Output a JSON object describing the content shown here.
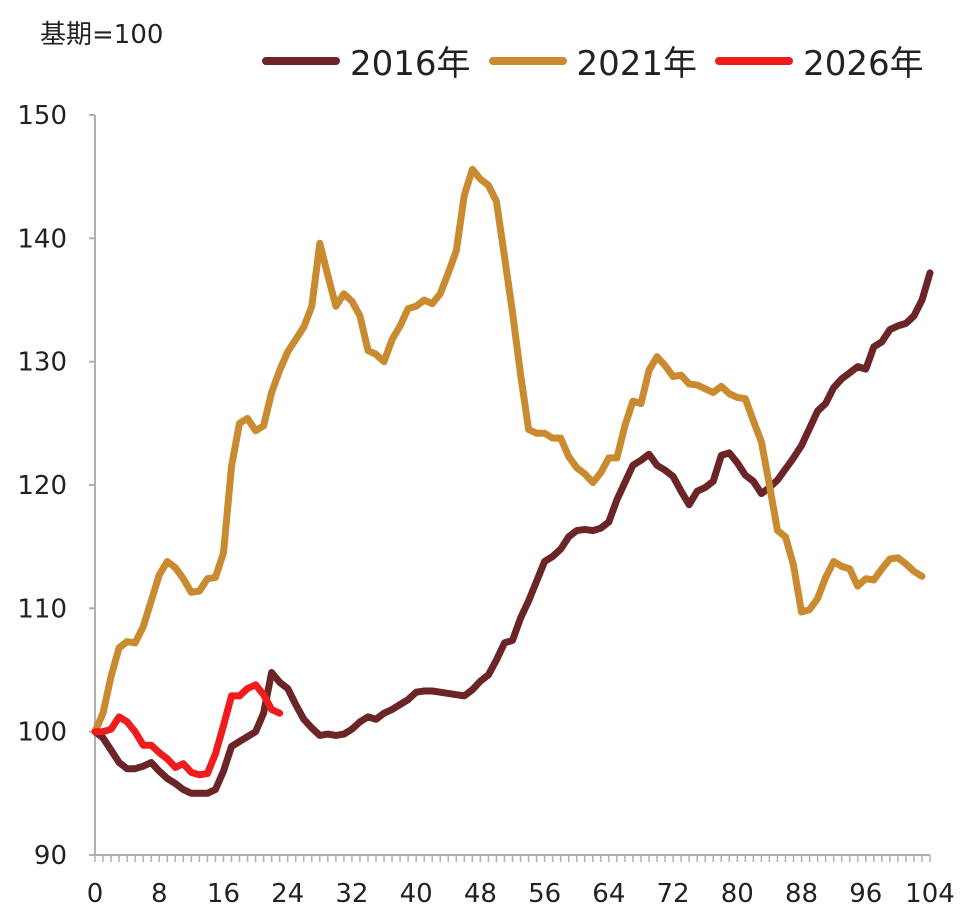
{
  "chart_data": {
    "type": "line",
    "unit_label": "基期=100",
    "x_ticks": [
      0,
      8,
      16,
      24,
      32,
      40,
      48,
      56,
      64,
      72,
      80,
      88,
      96,
      104
    ],
    "y_ticks": [
      90,
      100,
      110,
      120,
      130,
      140,
      150
    ],
    "xlim": [
      0,
      104
    ],
    "ylim": [
      90,
      150
    ],
    "grid": false,
    "legend_position": "top",
    "series": [
      {
        "name": "2016年",
        "color": "#6b2526",
        "points": [
          [
            0,
            100
          ],
          [
            1,
            99.5
          ],
          [
            2,
            98.5
          ],
          [
            3,
            97.5
          ],
          [
            4,
            97
          ],
          [
            5,
            97
          ],
          [
            6,
            97.2
          ],
          [
            7,
            97.5
          ],
          [
            8,
            96.8
          ],
          [
            9,
            96.2
          ],
          [
            10,
            95.8
          ],
          [
            11,
            95.3
          ],
          [
            12,
            95
          ],
          [
            13,
            95
          ],
          [
            14,
            95
          ],
          [
            15,
            95.3
          ],
          [
            16,
            96.8
          ],
          [
            17,
            98.8
          ],
          [
            18,
            99.2
          ],
          [
            19,
            99.6
          ],
          [
            20,
            100
          ],
          [
            21,
            101.5
          ],
          [
            22,
            104.8
          ],
          [
            23,
            104
          ],
          [
            24,
            103.5
          ],
          [
            25,
            102.2
          ],
          [
            26,
            101
          ],
          [
            27,
            100.3
          ],
          [
            28,
            99.7
          ],
          [
            29,
            99.8
          ],
          [
            30,
            99.7
          ],
          [
            31,
            99.8
          ],
          [
            32,
            100.2
          ],
          [
            33,
            100.8
          ],
          [
            34,
            101.2
          ],
          [
            35,
            101
          ],
          [
            36,
            101.5
          ],
          [
            37,
            101.8
          ],
          [
            38,
            102.2
          ],
          [
            39,
            102.6
          ],
          [
            40,
            103.2
          ],
          [
            41,
            103.3
          ],
          [
            42,
            103.3
          ],
          [
            43,
            103.2
          ],
          [
            44,
            103.1
          ],
          [
            45,
            103
          ],
          [
            46,
            102.9
          ],
          [
            47,
            103.4
          ],
          [
            48,
            104.1
          ],
          [
            49,
            104.6
          ],
          [
            50,
            105.8
          ],
          [
            51,
            107.2
          ],
          [
            52,
            107.4
          ],
          [
            53,
            109.2
          ],
          [
            54,
            110.6
          ],
          [
            55,
            112.2
          ],
          [
            56,
            113.8
          ],
          [
            57,
            114.2
          ],
          [
            58,
            114.8
          ],
          [
            59,
            115.8
          ],
          [
            60,
            116.3
          ],
          [
            61,
            116.4
          ],
          [
            62,
            116.3
          ],
          [
            63,
            116.5
          ],
          [
            64,
            117
          ],
          [
            65,
            118.8
          ],
          [
            66,
            120.2
          ],
          [
            67,
            121.6
          ],
          [
            68,
            122
          ],
          [
            69,
            122.5
          ],
          [
            70,
            121.6
          ],
          [
            71,
            121.2
          ],
          [
            72,
            120.7
          ],
          [
            73,
            119.5
          ],
          [
            74,
            118.4
          ],
          [
            75,
            119.5
          ],
          [
            76,
            119.8
          ],
          [
            77,
            120.3
          ],
          [
            78,
            122.4
          ],
          [
            79,
            122.6
          ],
          [
            80,
            121.8
          ],
          [
            81,
            120.8
          ],
          [
            82,
            120.3
          ],
          [
            83,
            119.3
          ],
          [
            84,
            119.8
          ],
          [
            85,
            120.4
          ],
          [
            86,
            121.3
          ],
          [
            87,
            122.2
          ],
          [
            88,
            123.2
          ],
          [
            89,
            124.6
          ],
          [
            90,
            126
          ],
          [
            91,
            126.6
          ],
          [
            92,
            127.9
          ],
          [
            93,
            128.6
          ],
          [
            94,
            129.1
          ],
          [
            95,
            129.6
          ],
          [
            96,
            129.4
          ],
          [
            97,
            131.2
          ],
          [
            98,
            131.6
          ],
          [
            99,
            132.6
          ],
          [
            100,
            132.9
          ],
          [
            101,
            133.1
          ],
          [
            102,
            133.7
          ],
          [
            103,
            135
          ],
          [
            104,
            137.2
          ]
        ]
      },
      {
        "name": "2021年",
        "color": "#c98a30",
        "points": [
          [
            0,
            100
          ],
          [
            1,
            101.5
          ],
          [
            2,
            104.5
          ],
          [
            3,
            106.8
          ],
          [
            4,
            107.3
          ],
          [
            5,
            107.2
          ],
          [
            6,
            108.5
          ],
          [
            7,
            110.6
          ],
          [
            8,
            112.7
          ],
          [
            9,
            113.8
          ],
          [
            10,
            113.3
          ],
          [
            11,
            112.4
          ],
          [
            12,
            111.3
          ],
          [
            13,
            111.4
          ],
          [
            14,
            112.4
          ],
          [
            15,
            112.5
          ],
          [
            16,
            114.5
          ],
          [
            17,
            121.5
          ],
          [
            18,
            125
          ],
          [
            19,
            125.4
          ],
          [
            20,
            124.4
          ],
          [
            21,
            124.8
          ],
          [
            22,
            127.5
          ],
          [
            23,
            129.3
          ],
          [
            24,
            130.8
          ],
          [
            25,
            131.8
          ],
          [
            26,
            132.8
          ],
          [
            27,
            134.5
          ],
          [
            28,
            139.6
          ],
          [
            29,
            137
          ],
          [
            30,
            134.5
          ],
          [
            31,
            135.5
          ],
          [
            32,
            134.9
          ],
          [
            33,
            133.7
          ],
          [
            34,
            130.9
          ],
          [
            35,
            130.6
          ],
          [
            36,
            130
          ],
          [
            37,
            131.8
          ],
          [
            38,
            132.9
          ],
          [
            39,
            134.3
          ],
          [
            40,
            134.5
          ],
          [
            41,
            135
          ],
          [
            42,
            134.7
          ],
          [
            43,
            135.5
          ],
          [
            44,
            137.2
          ],
          [
            45,
            139
          ],
          [
            46,
            143.5
          ],
          [
            47,
            145.6
          ],
          [
            48,
            144.8
          ],
          [
            49,
            144.3
          ],
          [
            50,
            143
          ],
          [
            51,
            138.5
          ],
          [
            52,
            134
          ],
          [
            53,
            129
          ],
          [
            54,
            124.5
          ],
          [
            55,
            124.2
          ],
          [
            56,
            124.2
          ],
          [
            57,
            123.8
          ],
          [
            58,
            123.8
          ],
          [
            59,
            122.3
          ],
          [
            60,
            121.4
          ],
          [
            61,
            120.9
          ],
          [
            62,
            120.2
          ],
          [
            63,
            121
          ],
          [
            64,
            122.2
          ],
          [
            65,
            122.2
          ],
          [
            66,
            124.8
          ],
          [
            67,
            126.8
          ],
          [
            68,
            126.6
          ],
          [
            69,
            129.3
          ],
          [
            70,
            130.4
          ],
          [
            71,
            129.7
          ],
          [
            72,
            128.8
          ],
          [
            73,
            128.9
          ],
          [
            74,
            128.2
          ],
          [
            75,
            128.1
          ],
          [
            76,
            127.8
          ],
          [
            77,
            127.5
          ],
          [
            78,
            128
          ],
          [
            79,
            127.4
          ],
          [
            80,
            127.1
          ],
          [
            81,
            127
          ],
          [
            82,
            125.2
          ],
          [
            83,
            123.5
          ],
          [
            84,
            120
          ],
          [
            85,
            116.3
          ],
          [
            86,
            115.8
          ],
          [
            87,
            113.5
          ],
          [
            88,
            109.7
          ],
          [
            89,
            109.9
          ],
          [
            90,
            110.8
          ],
          [
            91,
            112.5
          ],
          [
            92,
            113.8
          ],
          [
            93,
            113.4
          ],
          [
            94,
            113.2
          ],
          [
            95,
            111.8
          ],
          [
            96,
            112.4
          ],
          [
            97,
            112.3
          ],
          [
            98,
            113.2
          ],
          [
            99,
            114
          ],
          [
            100,
            114.1
          ],
          [
            101,
            113.6
          ],
          [
            102,
            113
          ],
          [
            103,
            112.6
          ]
        ]
      },
      {
        "name": "2026年",
        "color": "#ee1c1c",
        "points": [
          [
            0,
            100
          ],
          [
            1,
            100
          ],
          [
            2,
            100.2
          ],
          [
            3,
            101.2
          ],
          [
            4,
            100.8
          ],
          [
            5,
            100
          ],
          [
            6,
            98.9
          ],
          [
            7,
            98.9
          ],
          [
            8,
            98.3
          ],
          [
            9,
            97.8
          ],
          [
            10,
            97.1
          ],
          [
            11,
            97.4
          ],
          [
            12,
            96.7
          ],
          [
            13,
            96.5
          ],
          [
            14,
            96.6
          ],
          [
            15,
            98.2
          ],
          [
            16,
            100.5
          ],
          [
            17,
            102.9
          ],
          [
            18,
            102.9
          ],
          [
            19,
            103.5
          ],
          [
            20,
            103.8
          ],
          [
            21,
            103
          ],
          [
            22,
            101.8
          ],
          [
            23,
            101.5
          ]
        ]
      }
    ]
  }
}
